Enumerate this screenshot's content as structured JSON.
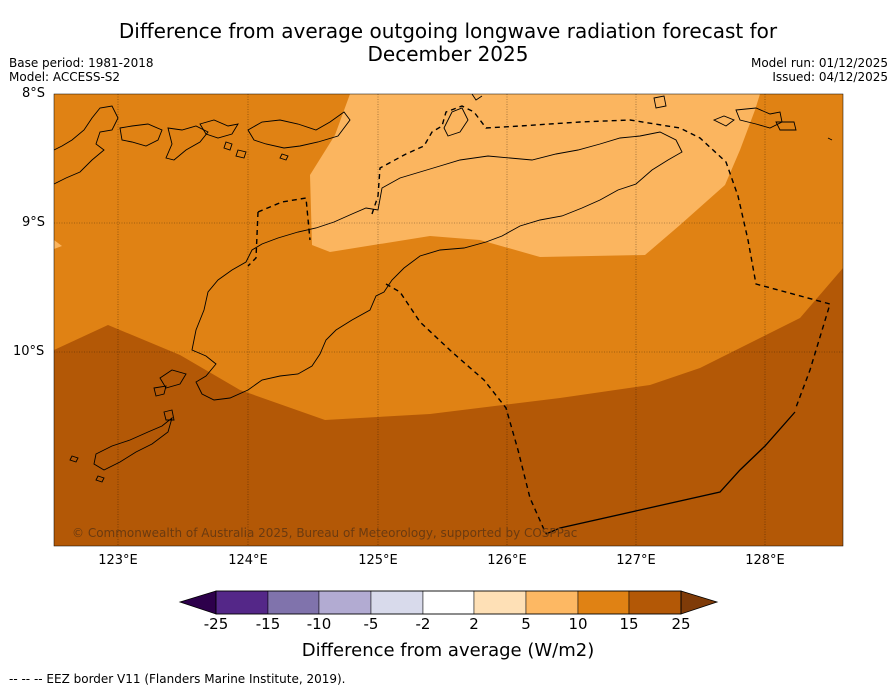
{
  "title": {
    "line1": "Difference from average outgoing longwave radiation forecast for",
    "line2": "December 2025"
  },
  "meta": {
    "base_period": "Base period: 1981-2018",
    "model": "Model: ACCESS-S2",
    "model_run": "Model run: 01/12/2025",
    "issued": "Issued: 04/12/2025"
  },
  "map": {
    "lat_labels": [
      "8°S",
      "9°S",
      "10°S"
    ],
    "lon_labels": [
      "123°E",
      "124°E",
      "125°E",
      "126°E",
      "127°E",
      "128°E"
    ],
    "copyright": "© Commonwealth of Australia 2025, Bureau of Meteorology, supported by COSPPac",
    "colors": {
      "c5_10": "#fbb55f",
      "c10_15": "#e08214",
      "c15_25": "#b35806"
    }
  },
  "colorbar": {
    "title": "Difference from average (W/m2)",
    "tick_labels": [
      "-25",
      "-15",
      "-10",
      "-5",
      "-2",
      "2",
      "5",
      "10",
      "15",
      "25"
    ],
    "colors": [
      "#2d004b",
      "#542788",
      "#8073ac",
      "#b2abd2",
      "#d8daeb",
      "#ffffff",
      "#fee0b6",
      "#fdb863",
      "#e08214",
      "#b35806",
      "#7f3b08"
    ]
  },
  "footnote": "-- -- -- EEZ border V11 (Flanders Marine Institute, 2019)."
}
